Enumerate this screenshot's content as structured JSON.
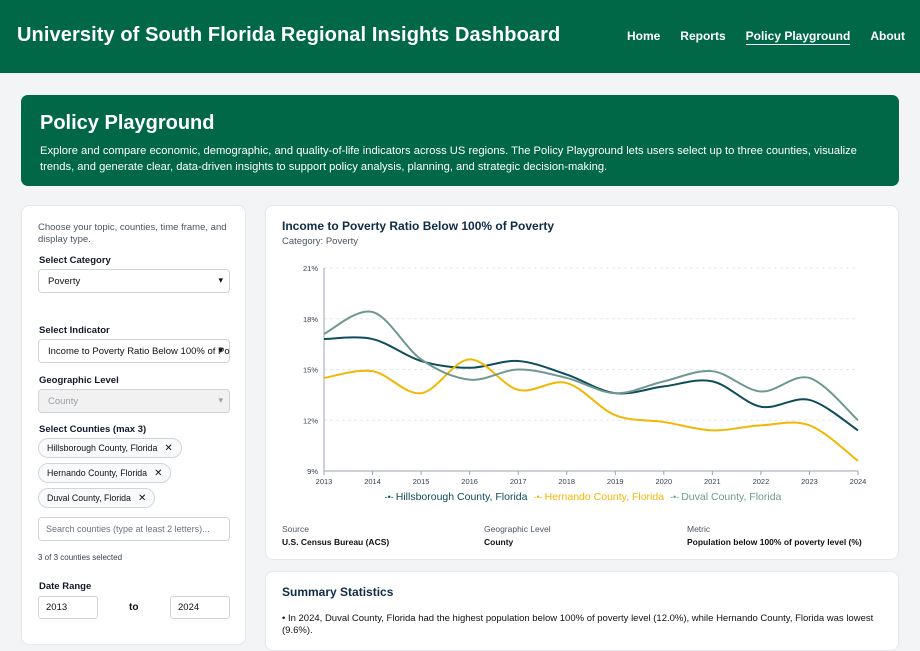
{
  "header": {
    "title": "University of South Florida Regional Insights Dashboard",
    "nav": [
      "Home",
      "Reports",
      "Policy Playground",
      "About"
    ],
    "active_nav": "Policy Playground"
  },
  "hero": {
    "title": "Policy Playground",
    "description": "Explore and compare economic, demographic, and quality-of-life indicators across US regions. The Policy Playground lets users select up to three counties, visualize trends, and generate clear, data-driven insights to support policy analysis, planning, and strategic decision-making."
  },
  "controls": {
    "intro": "Choose your topic, counties, time frame, and display type.",
    "category_label": "Select Category",
    "category_value": "Poverty",
    "indicator_label": "Select Indicator",
    "indicator_value": "Income to Poverty Ratio Below 100% of Po",
    "geo_label": "Geographic Level",
    "geo_value": "County",
    "counties_label": "Select Counties (max 3)",
    "counties": [
      "Hillsborough County, Florida",
      "Hernando County, Florida",
      "Duval County, Florida"
    ],
    "search_placeholder": "Search counties (type at least 2 letters)...",
    "selected_count": "3 of 3 counties selected",
    "date_label": "Date Range",
    "date_from": "2013",
    "date_to_label": "to",
    "date_to": "2024"
  },
  "chart_card": {
    "title": "Income to Poverty Ratio Below 100% of Poverty",
    "subtitle": "Category: Poverty",
    "source_label": "Source",
    "source_value": "U.S. Census Bureau (ACS)",
    "geo_label": "Geographic Level",
    "geo_value": "County",
    "metric_label": "Metric",
    "metric_value": "Population below 100% of poverty level (%)"
  },
  "chart_data": {
    "type": "line",
    "x": [
      2013,
      2014,
      2015,
      2016,
      2017,
      2018,
      2019,
      2020,
      2021,
      2022,
      2023,
      2024
    ],
    "ylim": [
      9,
      21
    ],
    "yticks": [
      "9%",
      "12%",
      "15%",
      "18%",
      "21%"
    ],
    "grid": true,
    "legend_position": "bottom",
    "series": [
      {
        "name": "Hillsborough County, Florida",
        "color": "#0f4c5c",
        "values": [
          16.8,
          16.8,
          15.5,
          15.1,
          15.5,
          14.7,
          13.6,
          14.0,
          14.3,
          12.8,
          13.2,
          11.4
        ]
      },
      {
        "name": "Hernando County, Florida",
        "color": "#f2b705",
        "values": [
          14.5,
          14.9,
          13.6,
          15.6,
          13.8,
          14.2,
          12.3,
          11.9,
          11.4,
          11.7,
          11.7,
          9.6
        ]
      },
      {
        "name": "Duval County, Florida",
        "color": "#6e9891",
        "values": [
          17.1,
          18.4,
          15.6,
          14.4,
          15.0,
          14.5,
          13.6,
          14.3,
          14.9,
          13.7,
          14.5,
          12.0
        ]
      }
    ]
  },
  "summary": {
    "title": "Summary Statistics",
    "bullet": "• In 2024, Duval County, Florida had the highest population below 100% of poverty level (12.0%), while Hernando County, Florida was lowest (9.6%)."
  }
}
